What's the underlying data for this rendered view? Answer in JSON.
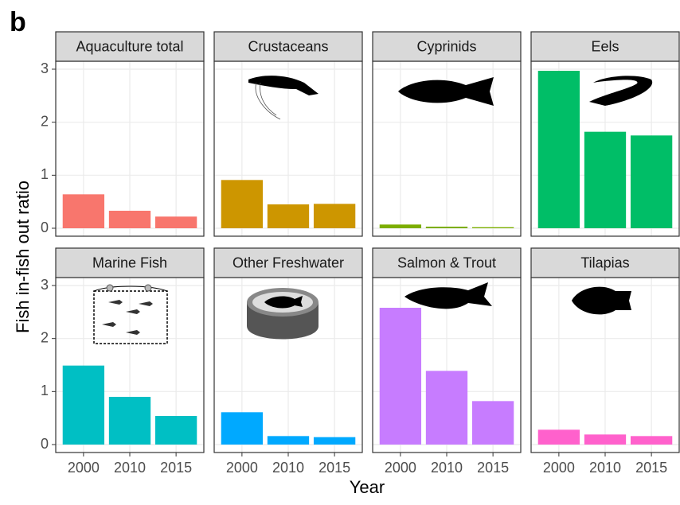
{
  "chart_data": {
    "type": "bar",
    "panel_label": "b",
    "y_label": "Fish in-fish out ratio",
    "x_label": "Year",
    "categories": [
      "2000",
      "2010",
      "2015"
    ],
    "ylim": [
      -0.15,
      3.15
    ],
    "yticks": [
      0,
      1,
      2,
      3
    ],
    "grid": true,
    "series": [
      {
        "name": "Aquaculture total",
        "color": "#F8766D",
        "values": [
          0.64,
          0.33,
          0.22
        ]
      },
      {
        "name": "Crustaceans",
        "color": "#CD9600",
        "values": [
          0.91,
          0.45,
          0.46
        ]
      },
      {
        "name": "Cyprinids",
        "color": "#7CAE00",
        "values": [
          0.07,
          0.03,
          0.02
        ]
      },
      {
        "name": "Eels",
        "color": "#00BE67",
        "values": [
          2.97,
          1.82,
          1.75
        ]
      },
      {
        "name": "Marine Fish",
        "color": "#00BFC4",
        "values": [
          1.49,
          0.9,
          0.54
        ]
      },
      {
        "name": "Other Freshwater",
        "color": "#00A9FF",
        "values": [
          0.61,
          0.16,
          0.14
        ]
      },
      {
        "name": "Salmon & Trout",
        "color": "#C77CFF",
        "values": [
          2.58,
          1.39,
          0.82
        ]
      },
      {
        "name": "Tilapias",
        "color": "#FF61CC",
        "values": [
          0.28,
          0.19,
          0.16
        ]
      }
    ]
  }
}
